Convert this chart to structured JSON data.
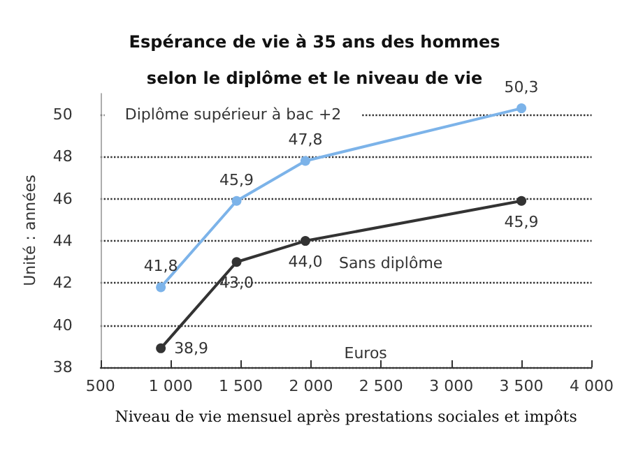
{
  "chart_data": {
    "type": "line",
    "title": "Espérance de vie à 35 ans des hommes\nselon le diplôme et le niveau de vie",
    "xlabel": "Niveau de vie mensuel après prestations sociales et impôts",
    "ylabel": "Unité : années",
    "annotations": [
      "Euros"
    ],
    "x": [
      930,
      1470,
      1960,
      3500
    ],
    "series": [
      {
        "name": "Diplôme supérieur à bac +2",
        "color": "#7cb3e9",
        "values": [
          41.8,
          45.9,
          47.8,
          50.3
        ],
        "value_labels": [
          "41,8",
          "45,9",
          "47,8",
          "50,3"
        ]
      },
      {
        "name": "Sans diplôme",
        "color": "#333333",
        "values": [
          38.9,
          43.0,
          44.0,
          45.9
        ],
        "value_labels": [
          "38,9",
          "43,0",
          "44,0",
          "45,9"
        ]
      }
    ],
    "xlim": [
      500,
      4000
    ],
    "xticks": [
      500,
      {
        "value": 1000,
        "label": "1 000"
      },
      {
        "value": 1500,
        "label": "1 500"
      },
      {
        "value": 2000,
        "label": "2 000"
      },
      {
        "value": 2500,
        "label": "2 500"
      },
      {
        "value": 3000,
        "label": "3 000"
      },
      {
        "value": 3500,
        "label": "3 500"
      },
      {
        "value": 4000,
        "label": "4 000"
      }
    ],
    "ylim": [
      38,
      51
    ],
    "yticks": [
      38,
      40,
      42,
      44,
      46,
      48,
      50
    ],
    "grid": "y",
    "legend": false,
    "marker": "circle",
    "line_style": "solid"
  }
}
